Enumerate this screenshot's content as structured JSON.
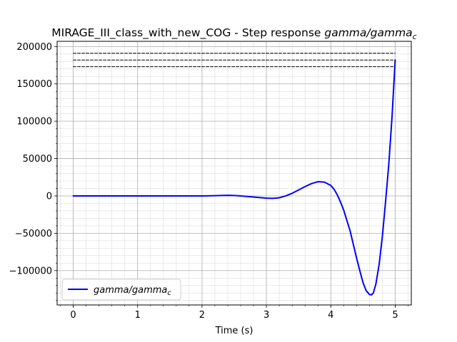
{
  "chart_data": {
    "type": "line",
    "title": {
      "main": "MIRAGE_III_class_with_new_COG - Step response ",
      "var": "gamma/gamma",
      "sub": "c"
    },
    "xlabel": "Time (s)",
    "ylabel": "",
    "xlim": [
      -0.25,
      5.25
    ],
    "ylim": [
      -146000,
      207000
    ],
    "x_ticks": [
      0,
      1,
      2,
      3,
      4,
      5
    ],
    "x_tick_labels": [
      "0",
      "1",
      "2",
      "3",
      "4",
      "5"
    ],
    "y_ticks": [
      -100000,
      -50000,
      0,
      50000,
      100000,
      150000,
      200000
    ],
    "y_tick_labels": [
      "−100000",
      "−50000",
      "0",
      "50000",
      "100000",
      "150000",
      "200000"
    ],
    "x_minor_step": 0.2,
    "y_minor_step": 10000,
    "grid": true,
    "legend_position": "bottom-left",
    "series": [
      {
        "name": "gamma/gamma",
        "name_sub": "c",
        "color": "#0000ff",
        "style": "solid",
        "x": [
          0,
          0.5,
          1.0,
          1.5,
          2.0,
          2.2,
          2.4,
          2.5,
          2.6,
          2.8,
          3.0,
          3.1,
          3.2,
          3.3,
          3.4,
          3.5,
          3.6,
          3.7,
          3.8,
          3.9,
          4.0,
          4.05,
          4.1,
          4.15,
          4.2,
          4.3,
          4.4,
          4.45,
          4.5,
          4.55,
          4.6,
          4.63,
          4.66,
          4.7,
          4.75,
          4.8,
          4.85,
          4.9,
          4.95,
          5.0
        ],
        "y": [
          0,
          0,
          0,
          0,
          0,
          300,
          800,
          600,
          0,
          -1500,
          -3000,
          -3200,
          -2500,
          0,
          3500,
          8000,
          12500,
          16500,
          19000,
          18500,
          14000,
          9000,
          1500,
          -8000,
          -19000,
          -47000,
          -83000,
          -100000,
          -116000,
          -127000,
          -132000,
          -132500,
          -130000,
          -118000,
          -92000,
          -55000,
          -8000,
          42000,
          105000,
          182000
        ]
      },
      {
        "name": "",
        "color": "#000000",
        "style": "dashed",
        "x": [
          0,
          5.0
        ],
        "y": [
          191000,
          191000
        ]
      },
      {
        "name": "",
        "color": "#000000",
        "style": "dashed",
        "x": [
          0,
          5.0
        ],
        "y": [
          182000,
          182000
        ]
      },
      {
        "name": "",
        "color": "#000000",
        "style": "dashed",
        "x": [
          0,
          5.0
        ],
        "y": [
          173000,
          173000
        ]
      }
    ]
  }
}
